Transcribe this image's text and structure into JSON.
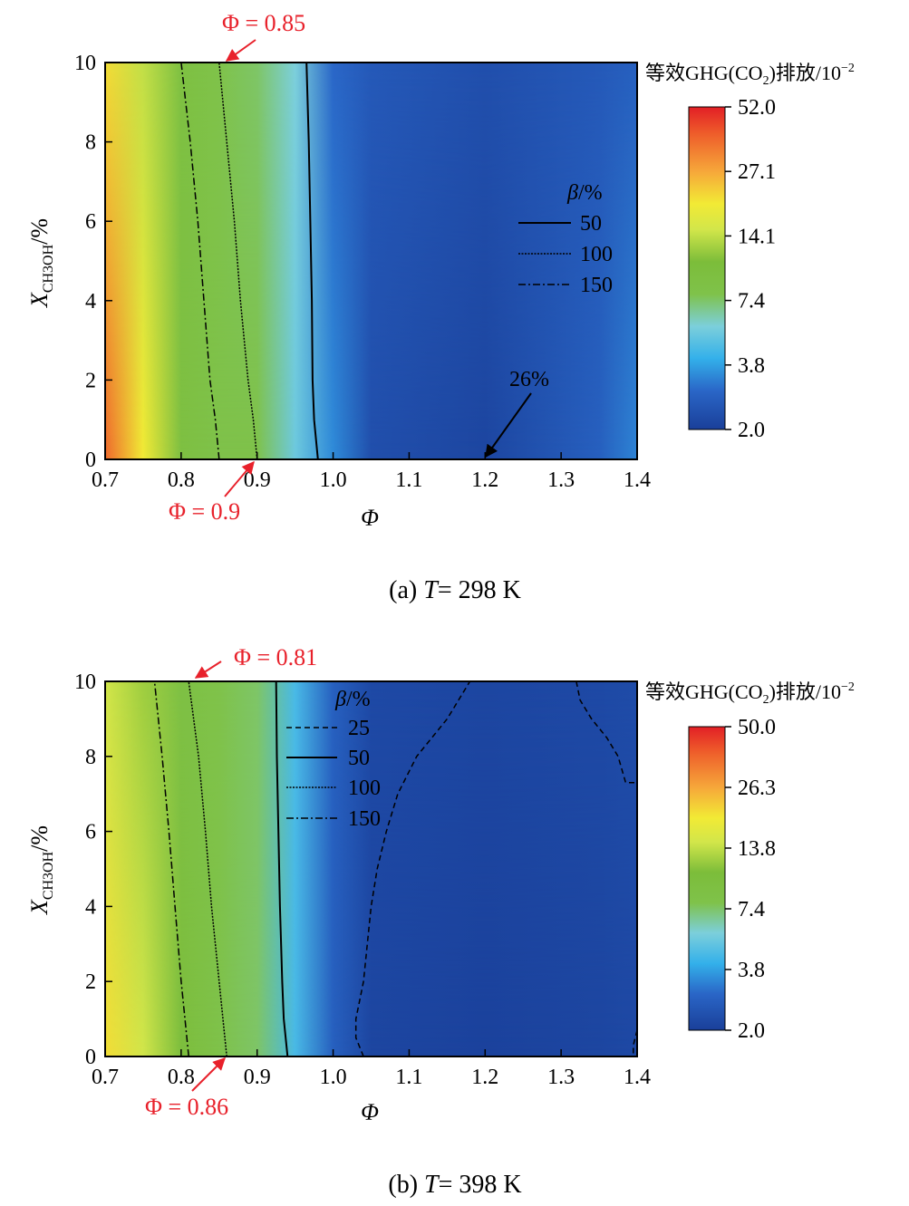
{
  "chart_data": [
    {
      "type": "heatmap",
      "id": "a",
      "caption_prefix": "(a)",
      "caption_var": "T",
      "caption_value": "= 298 K",
      "xlabel": "Φ",
      "ylabel_main": "X",
      "ylabel_sub": "CH3OH",
      "ylabel_unit": "/%",
      "xlim": [
        0.7,
        1.4
      ],
      "ylim": [
        0,
        10
      ],
      "xticks": [
        "0.7",
        "0.8",
        "0.9",
        "1.0",
        "1.1",
        "1.2",
        "1.3",
        "1.4"
      ],
      "yticks": [
        "0",
        "2",
        "4",
        "6",
        "8",
        "10"
      ],
      "colorbar": {
        "title_pre": "等效GHG(CO",
        "title_sub": "2",
        "title_post": ")排放/10",
        "title_exp": "−2",
        "ticks": [
          "52.0",
          "27.1",
          "14.1",
          "7.4",
          "3.8",
          "2.0"
        ]
      },
      "field": {
        "columns": [
          0.7,
          0.75,
          0.8,
          0.85,
          0.9,
          0.95,
          1.0,
          1.05,
          1.2,
          1.35,
          1.4
        ],
        "rows": [
          {
            "y": 0,
            "v": [
              0.9,
              0.7,
              0.47,
              0.42,
              0.42,
              0.3,
              0.17,
              0.05,
              0.02,
              0.1,
              0.16
            ]
          },
          {
            "y": 10,
            "v": [
              0.72,
              0.6,
              0.47,
              0.42,
              0.4,
              0.32,
              0.12,
              0.08,
              0.05,
              0.08,
              0.1
            ]
          }
        ]
      },
      "contours": [
        {
          "name": "50",
          "style": "solid",
          "x_at_y": [
            [
              0,
              0.98
            ],
            [
              1,
              0.975
            ],
            [
              2,
              0.973
            ],
            [
              4,
              0.972
            ],
            [
              6,
              0.97
            ],
            [
              8,
              0.968
            ],
            [
              10,
              0.965
            ]
          ]
        },
        {
          "name": "100",
          "style": "dotted",
          "x_at_y": [
            [
              0,
              0.9
            ],
            [
              1,
              0.895
            ],
            [
              2,
              0.888
            ],
            [
              4,
              0.878
            ],
            [
              6,
              0.87
            ],
            [
              8,
              0.86
            ],
            [
              10,
              0.85
            ]
          ]
        },
        {
          "name": "150",
          "style": "dashdot",
          "x_at_y": [
            [
              0,
              0.85
            ],
            [
              1,
              0.845
            ],
            [
              2,
              0.838
            ],
            [
              4,
              0.83
            ],
            [
              6,
              0.822
            ],
            [
              8,
              0.812
            ],
            [
              10,
              0.8
            ]
          ]
        }
      ],
      "legend": {
        "title": "β",
        "unit": "/%",
        "entries": [
          "50",
          "100",
          "150"
        ]
      },
      "annotations": {
        "phi_top": "Φ = 0.85",
        "phi_bottom": "Φ = 0.9",
        "min_label": "26%"
      }
    },
    {
      "type": "heatmap",
      "id": "b",
      "caption_prefix": "(b)",
      "caption_var": "T",
      "caption_value": "= 398 K",
      "xlabel": "Φ",
      "ylabel_main": "X",
      "ylabel_sub": "CH3OH",
      "ylabel_unit": "/%",
      "xlim": [
        0.7,
        1.4
      ],
      "ylim": [
        0,
        10
      ],
      "xticks": [
        "0.7",
        "0.8",
        "0.9",
        "1.0",
        "1.1",
        "1.2",
        "1.3",
        "1.4"
      ],
      "yticks": [
        "0",
        "2",
        "4",
        "6",
        "8",
        "10"
      ],
      "colorbar": {
        "title_pre": "等效GHG(CO",
        "title_sub": "2",
        "title_post": ")排放/10",
        "title_exp": "−2",
        "ticks": [
          "50.0",
          "26.3",
          "13.8",
          "7.4",
          "3.8",
          "2.0"
        ]
      },
      "field": {
        "columns": [
          0.7,
          0.75,
          0.8,
          0.85,
          0.9,
          0.95,
          1.0,
          1.05,
          1.2,
          1.35,
          1.4
        ],
        "rows": [
          {
            "y": 0,
            "v": [
              0.72,
              0.62,
              0.5,
              0.42,
              0.4,
              0.25,
              0.1,
              0.02,
              0.01,
              0.02,
              0.03
            ]
          },
          {
            "y": 10,
            "v": [
              0.62,
              0.56,
              0.46,
              0.42,
              0.4,
              0.25,
              0.1,
              0.03,
              0.02,
              0.03,
              0.04
            ]
          }
        ]
      },
      "contours": [
        {
          "name": "25",
          "style": "dashed",
          "x_at_y": [
            [
              0,
              1.04
            ],
            [
              0.5,
              1.03
            ],
            [
              1,
              1.03
            ],
            [
              2,
              1.04
            ],
            [
              3,
              1.045
            ],
            [
              4,
              1.05
            ],
            [
              5,
              1.058
            ],
            [
              6,
              1.07
            ],
            [
              7,
              1.085
            ],
            [
              8,
              1.11
            ],
            [
              9,
              1.15
            ],
            [
              10,
              1.18
            ]
          ]
        },
        {
          "name": "50",
          "style": "solid",
          "x_at_y": [
            [
              0,
              0.94
            ],
            [
              1,
              0.935
            ],
            [
              2,
              0.933
            ],
            [
              4,
              0.93
            ],
            [
              6,
              0.928
            ],
            [
              8,
              0.926
            ],
            [
              10,
              0.925
            ]
          ]
        },
        {
          "name": "100",
          "style": "dotted",
          "x_at_y": [
            [
              0,
              0.86
            ],
            [
              1,
              0.855
            ],
            [
              2,
              0.85
            ],
            [
              4,
              0.84
            ],
            [
              6,
              0.832
            ],
            [
              8,
              0.823
            ],
            [
              10,
              0.81
            ]
          ]
        },
        {
          "name": "150",
          "style": "dashdot",
          "x_at_y": [
            [
              0,
              0.81
            ],
            [
              1,
              0.805
            ],
            [
              2,
              0.8
            ],
            [
              4,
              0.792
            ],
            [
              6,
              0.784
            ],
            [
              8,
              0.775
            ],
            [
              10,
              0.765
            ]
          ]
        }
      ],
      "contours_extra": [
        {
          "name": "25",
          "style": "dashed",
          "points": [
            [
              1.32,
              10
            ],
            [
              1.325,
              9.5
            ],
            [
              1.34,
              9
            ],
            [
              1.36,
              8.5
            ],
            [
              1.375,
              8
            ],
            [
              1.385,
              7.3
            ],
            [
              1.4,
              7.3
            ]
          ]
        },
        {
          "name": "25",
          "style": "dashed",
          "points": [
            [
              1.4,
              0.7
            ],
            [
              1.395,
              0.3
            ],
            [
              1.395,
              0
            ]
          ]
        }
      ],
      "legend": {
        "title": "β",
        "unit": "/%",
        "entries": [
          "25",
          "50",
          "100",
          "150"
        ]
      },
      "annotations": {
        "phi_top": "Φ = 0.81",
        "phi_bottom": "Φ = 0.86"
      }
    }
  ]
}
